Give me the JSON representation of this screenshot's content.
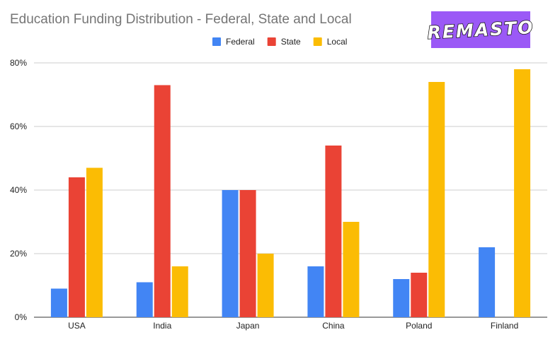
{
  "logo": {
    "text": "REMASTO",
    "background_color": "#9b59f6"
  },
  "chart_data": {
    "type": "bar",
    "title": "Education Funding Distribution - Federal, State and Local",
    "xlabel": "",
    "ylabel": "",
    "categories": [
      "USA",
      "India",
      "Japan",
      "China",
      "Poland",
      "Finland"
    ],
    "series": [
      {
        "name": "Federal",
        "color": "#4285f4",
        "values": [
          9,
          11,
          40,
          16,
          12,
          22
        ]
      },
      {
        "name": "State",
        "color": "#ea4335",
        "values": [
          44,
          73,
          40,
          54,
          14,
          0
        ]
      },
      {
        "name": "Local",
        "color": "#fbbc04",
        "values": [
          47,
          16,
          20,
          30,
          74,
          78
        ]
      }
    ],
    "ylim": [
      0,
      80
    ],
    "yticks": [
      0,
      20,
      40,
      60,
      80
    ],
    "ytick_labels": [
      "0%",
      "20%",
      "40%",
      "60%",
      "80%"
    ],
    "grid": true,
    "legend_position": "top-center"
  }
}
